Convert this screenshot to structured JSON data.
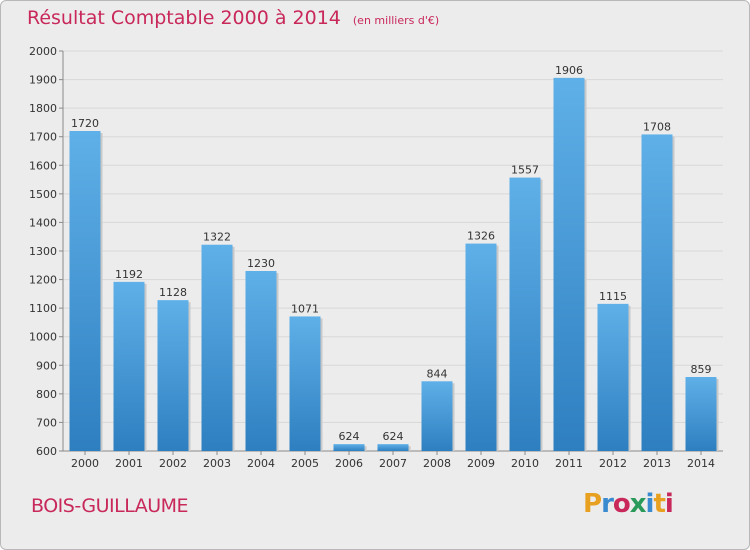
{
  "title": "Résultat Comptable 2000 à 2014",
  "subtitle": "(en milliers d'€)",
  "town": "BOIS-GUILLAUME",
  "logo": {
    "p": "P",
    "r": "r",
    "o": "o",
    "x": "x",
    "i": "i",
    "t": "t",
    "i2": "i"
  },
  "colors": {
    "bar_light": "#5fb0e8",
    "bar_dark": "#2e7fc0",
    "title": "#c8285a",
    "grid": "#dcdcdc",
    "background": "#ececec"
  },
  "chart_data": {
    "type": "bar",
    "title": "Résultat Comptable 2000 à 2014",
    "categories": [
      "2000",
      "2001",
      "2002",
      "2003",
      "2004",
      "2005",
      "2006",
      "2007",
      "2008",
      "2009",
      "2010",
      "2011",
      "2012",
      "2013",
      "2014"
    ],
    "values": [
      1720,
      1192,
      1128,
      1322,
      1230,
      1071,
      624,
      624,
      844,
      1326,
      1557,
      1906,
      1115,
      1708,
      859
    ],
    "value_labels": [
      "1720",
      "1192",
      "1128",
      "1322",
      "1230",
      "1071",
      "624",
      "624",
      "844",
      "1326",
      "1557",
      "1906",
      "1115",
      "1708",
      "859"
    ],
    "ylim": [
      600,
      2000
    ],
    "yticks": [
      "600",
      "700",
      "800",
      "900",
      "1000",
      "1100",
      "1200",
      "1300",
      "1400",
      "1500",
      "1600",
      "1700",
      "1800",
      "1900",
      "2000"
    ],
    "grid": true,
    "xlabel": "",
    "ylabel": ""
  }
}
